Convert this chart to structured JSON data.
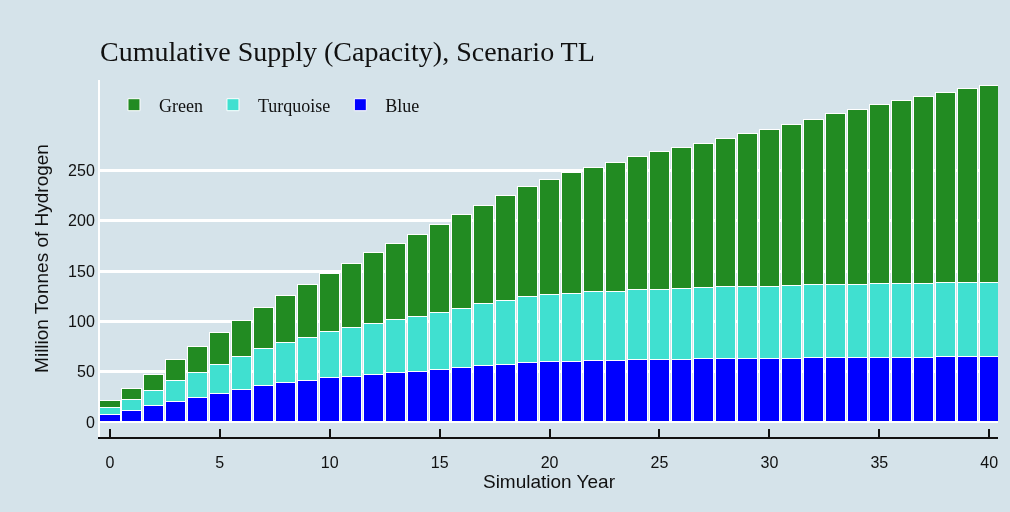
{
  "chart_data": {
    "type": "bar",
    "title": "Cumulative Supply (Capacity), Scenario TL",
    "xlabel": "Simulation Year",
    "ylabel": "Million Tonnes of Hydrogen",
    "x": [
      0,
      1,
      2,
      3,
      4,
      5,
      6,
      7,
      8,
      9,
      10,
      11,
      12,
      13,
      14,
      15,
      16,
      17,
      18,
      19,
      20,
      21,
      22,
      23,
      24,
      25,
      26,
      27,
      28,
      29,
      30,
      31,
      32,
      33,
      34,
      35,
      36,
      37,
      38,
      39,
      40
    ],
    "stacked": true,
    "series": [
      {
        "name": "Blue",
        "color": "#0000ff",
        "values": [
          7,
          11,
          16,
          20,
          24,
          28,
          32,
          36,
          39,
          41,
          44,
          45,
          47,
          49,
          50,
          52,
          54,
          56,
          57,
          59,
          60,
          60,
          61,
          61,
          62,
          62,
          62,
          63,
          63,
          63,
          63,
          63,
          64,
          64,
          64,
          64,
          64,
          64,
          65,
          65,
          65
        ]
      },
      {
        "name": "Turquoise",
        "color": "#40e0d0",
        "values": [
          7,
          11,
          15,
          21,
          25,
          29,
          33,
          37,
          40,
          43,
          46,
          49,
          51,
          53,
          55,
          57,
          59,
          62,
          64,
          66,
          67,
          68,
          69,
          69,
          70,
          70,
          71,
          71,
          72,
          72,
          72,
          73,
          73,
          73,
          73,
          74,
          74,
          74,
          74,
          74,
          74
        ]
      },
      {
        "name": "Green",
        "color": "#228b22",
        "values": [
          7,
          11,
          16,
          21,
          26,
          32,
          36,
          41,
          47,
          53,
          58,
          64,
          70,
          75,
          81,
          87,
          93,
          97,
          104,
          109,
          114,
          120,
          123,
          128,
          132,
          137,
          140,
          143,
          147,
          152,
          156,
          160,
          164,
          170,
          174,
          178,
          182,
          186,
          189,
          193,
          196
        ]
      }
    ],
    "xlim": [
      -0.45,
      40.4
    ],
    "xticks": [
      0,
      5,
      10,
      15,
      20,
      25,
      30,
      35,
      40
    ],
    "ylim": [
      -15,
      340
    ],
    "yticks": [
      0,
      50,
      100,
      150,
      200,
      250
    ],
    "grid": "y",
    "legend": "top left"
  }
}
